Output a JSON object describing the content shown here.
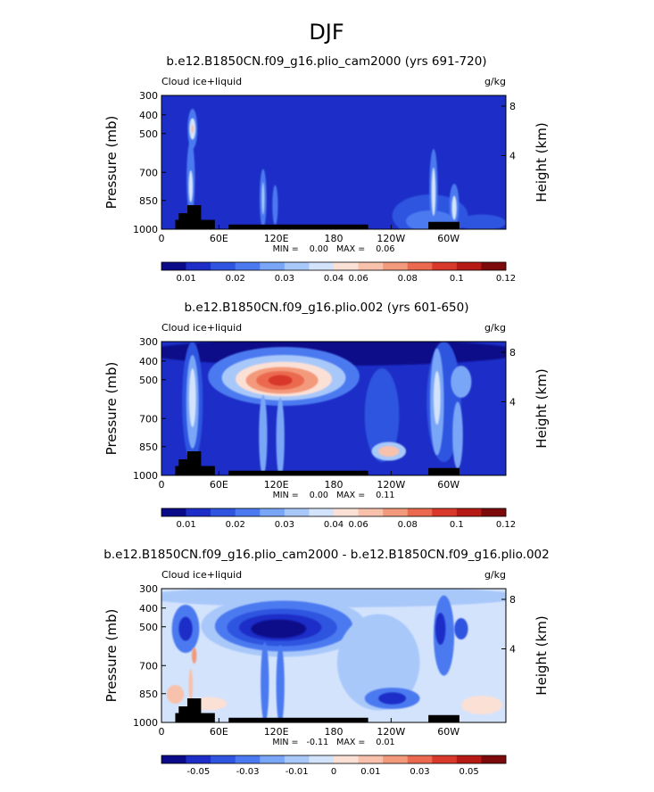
{
  "figure": {
    "title": "DJF"
  },
  "chart_data": [
    {
      "type": "heatmap",
      "title": "b.e12.B1850CN.f09_g16.plio_cam2000 (yrs 691-720)",
      "left_label": "Cloud ice+liquid",
      "right_label": "g/kg",
      "ylabel": "Pressure (mb)",
      "ylabel_right": "Height (km)",
      "x_ticks": [
        "0",
        "60E",
        "120E",
        "180",
        "120W",
        "60W"
      ],
      "y_ticks": [
        "300",
        "400",
        "500",
        "700",
        "850",
        "1000"
      ],
      "y_ticks_right": [
        "8",
        "4"
      ],
      "stats": "MIN =    0.00   MAX =    0.06",
      "colorbar_labels": [
        "0.01",
        "0.02",
        "0.03",
        "0.04",
        "0.06",
        "0.08",
        "0.1",
        "0.12"
      ],
      "colors": [
        "#0b0b8a",
        "#1c2ec7",
        "#2f55e0",
        "#4b7af0",
        "#7aa6f7",
        "#a9c8fa",
        "#d3e3fc",
        "#fbe0d6",
        "#f8c1ab",
        "#f39a7c",
        "#eb6a4f",
        "#d8392b",
        "#b51a14",
        "#7d0a0a"
      ],
      "features": [
        {
          "type": "bg",
          "level": 1
        },
        {
          "type": "blob",
          "x": 0.085,
          "y": 0.62,
          "rx": 0.012,
          "ry": 0.28,
          "level": 3
        },
        {
          "type": "blob",
          "x": 0.085,
          "y": 0.68,
          "rx": 0.006,
          "ry": 0.12,
          "level": 6
        },
        {
          "type": "blob",
          "x": 0.09,
          "y": 0.25,
          "rx": 0.014,
          "ry": 0.15,
          "level": 3
        },
        {
          "type": "blob",
          "x": 0.09,
          "y": 0.25,
          "rx": 0.009,
          "ry": 0.08,
          "level": 6
        },
        {
          "type": "blob",
          "x": 0.09,
          "y": 0.25,
          "rx": 0.004,
          "ry": 0.03,
          "level": 8
        },
        {
          "type": "blob",
          "x": 0.295,
          "y": 0.77,
          "rx": 0.01,
          "ry": 0.22,
          "level": 3
        },
        {
          "type": "blob",
          "x": 0.295,
          "y": 0.77,
          "rx": 0.004,
          "ry": 0.12,
          "level": 5
        },
        {
          "type": "blob",
          "x": 0.33,
          "y": 0.82,
          "rx": 0.008,
          "ry": 0.15,
          "level": 3
        },
        {
          "type": "blob",
          "x": 0.78,
          "y": 0.9,
          "rx": 0.11,
          "ry": 0.16,
          "level": 2
        },
        {
          "type": "blob",
          "x": 0.78,
          "y": 0.94,
          "rx": 0.07,
          "ry": 0.08,
          "level": 3
        },
        {
          "type": "blob",
          "x": 0.79,
          "y": 0.7,
          "rx": 0.012,
          "ry": 0.3,
          "level": 3
        },
        {
          "type": "blob",
          "x": 0.79,
          "y": 0.72,
          "rx": 0.006,
          "ry": 0.18,
          "level": 6
        },
        {
          "type": "blob",
          "x": 0.85,
          "y": 0.82,
          "rx": 0.014,
          "ry": 0.16,
          "level": 3
        },
        {
          "type": "blob",
          "x": 0.85,
          "y": 0.84,
          "rx": 0.007,
          "ry": 0.09,
          "level": 6
        },
        {
          "type": "blob",
          "x": 0.93,
          "y": 0.95,
          "rx": 0.07,
          "ry": 0.06,
          "level": 2
        }
      ]
    },
    {
      "type": "heatmap",
      "title": "b.e12.B1850CN.f09_g16.plio.002 (yrs 601-650)",
      "left_label": "Cloud ice+liquid",
      "right_label": "g/kg",
      "ylabel": "Pressure (mb)",
      "ylabel_right": "Height (km)",
      "x_ticks": [
        "0",
        "60E",
        "120E",
        "180",
        "120W",
        "60W"
      ],
      "y_ticks": [
        "300",
        "400",
        "500",
        "700",
        "850",
        "1000"
      ],
      "y_ticks_right": [
        "8",
        "4"
      ],
      "stats": "MIN =    0.00   MAX =    0.11",
      "colorbar_labels": [
        "0.01",
        "0.02",
        "0.03",
        "0.04",
        "0.06",
        "0.08",
        "0.1",
        "0.12"
      ],
      "colors": [
        "#0b0b8a",
        "#1c2ec7",
        "#2f55e0",
        "#4b7af0",
        "#7aa6f7",
        "#a9c8fa",
        "#d3e3fc",
        "#fbe0d6",
        "#f8c1ab",
        "#f39a7c",
        "#eb6a4f",
        "#d8392b",
        "#b51a14",
        "#7d0a0a"
      ],
      "features": [
        {
          "type": "bg",
          "level": 1
        },
        {
          "type": "blob",
          "x": 0.5,
          "y": 0.08,
          "rx": 0.55,
          "ry": 0.1,
          "level": 0
        },
        {
          "type": "blob",
          "x": 0.09,
          "y": 0.45,
          "rx": 0.03,
          "ry": 0.45,
          "level": 2
        },
        {
          "type": "blob",
          "x": 0.09,
          "y": 0.45,
          "rx": 0.018,
          "ry": 0.35,
          "level": 4
        },
        {
          "type": "blob",
          "x": 0.09,
          "y": 0.42,
          "rx": 0.01,
          "ry": 0.22,
          "level": 6
        },
        {
          "type": "blob",
          "x": 0.355,
          "y": 0.26,
          "rx": 0.22,
          "ry": 0.22,
          "level": 3
        },
        {
          "type": "blob",
          "x": 0.355,
          "y": 0.27,
          "rx": 0.18,
          "ry": 0.17,
          "level": 5
        },
        {
          "type": "blob",
          "x": 0.355,
          "y": 0.28,
          "rx": 0.14,
          "ry": 0.13,
          "level": 7
        },
        {
          "type": "blob",
          "x": 0.35,
          "y": 0.29,
          "rx": 0.105,
          "ry": 0.1,
          "level": 9
        },
        {
          "type": "blob",
          "x": 0.345,
          "y": 0.29,
          "rx": 0.07,
          "ry": 0.07,
          "level": 10
        },
        {
          "type": "blob",
          "x": 0.345,
          "y": 0.29,
          "rx": 0.035,
          "ry": 0.04,
          "level": 11
        },
        {
          "type": "blob",
          "x": 0.295,
          "y": 0.7,
          "rx": 0.012,
          "ry": 0.3,
          "level": 4
        },
        {
          "type": "blob",
          "x": 0.345,
          "y": 0.72,
          "rx": 0.012,
          "ry": 0.3,
          "level": 4
        },
        {
          "type": "blob",
          "x": 0.64,
          "y": 0.55,
          "rx": 0.05,
          "ry": 0.35,
          "level": 2
        },
        {
          "type": "blob",
          "x": 0.66,
          "y": 0.82,
          "rx": 0.05,
          "ry": 0.07,
          "level": 5
        },
        {
          "type": "blob",
          "x": 0.66,
          "y": 0.82,
          "rx": 0.03,
          "ry": 0.04,
          "level": 8
        },
        {
          "type": "blob",
          "x": 0.82,
          "y": 0.45,
          "rx": 0.05,
          "ry": 0.45,
          "level": 2
        },
        {
          "type": "blob",
          "x": 0.8,
          "y": 0.45,
          "rx": 0.02,
          "ry": 0.4,
          "level": 4
        },
        {
          "type": "blob",
          "x": 0.8,
          "y": 0.42,
          "rx": 0.01,
          "ry": 0.2,
          "level": 6
        },
        {
          "type": "blob",
          "x": 0.86,
          "y": 0.7,
          "rx": 0.015,
          "ry": 0.25,
          "level": 4
        },
        {
          "type": "blob",
          "x": 0.87,
          "y": 0.3,
          "rx": 0.03,
          "ry": 0.12,
          "level": 4
        }
      ]
    },
    {
      "type": "heatmap",
      "title": "b.e12.B1850CN.f09_g16.plio_cam2000 - b.e12.B1850CN.f09_g16.plio.002",
      "left_label": "Cloud ice+liquid",
      "right_label": "g/kg",
      "ylabel": "Pressure (mb)",
      "ylabel_right": "Height (km)",
      "x_ticks": [
        "0",
        "60E",
        "120E",
        "180",
        "120W",
        "60W"
      ],
      "y_ticks": [
        "300",
        "400",
        "500",
        "700",
        "850",
        "1000"
      ],
      "y_ticks_right": [
        "8",
        "4"
      ],
      "stats": "MIN =   -0.11   MAX =    0.01",
      "colorbar_labels": [
        "-0.05",
        "-0.03",
        "-0.01",
        "0",
        "0.01",
        "0.03",
        "0.05"
      ],
      "colors": [
        "#0b0b8a",
        "#1c2ec7",
        "#2f55e0",
        "#4b7af0",
        "#7aa6f7",
        "#a9c8fa",
        "#d3e3fc",
        "#fbe0d6",
        "#f8c1ab",
        "#f39a7c",
        "#eb6a4f",
        "#d8392b",
        "#b51a14",
        "#7d0a0a"
      ],
      "features": [
        {
          "type": "bg",
          "level": 6
        },
        {
          "type": "blob",
          "x": 0.5,
          "y": 0.06,
          "rx": 0.55,
          "ry": 0.08,
          "level": 5
        },
        {
          "type": "blob",
          "x": 0.355,
          "y": 0.28,
          "rx": 0.24,
          "ry": 0.23,
          "level": 5
        },
        {
          "type": "blob",
          "x": 0.355,
          "y": 0.28,
          "rx": 0.2,
          "ry": 0.19,
          "level": 3
        },
        {
          "type": "blob",
          "x": 0.35,
          "y": 0.29,
          "rx": 0.16,
          "ry": 0.14,
          "level": 2
        },
        {
          "type": "blob",
          "x": 0.345,
          "y": 0.29,
          "rx": 0.12,
          "ry": 0.1,
          "level": 1
        },
        {
          "type": "blob",
          "x": 0.34,
          "y": 0.3,
          "rx": 0.08,
          "ry": 0.07,
          "level": 0
        },
        {
          "type": "blob",
          "x": 0.07,
          "y": 0.3,
          "rx": 0.04,
          "ry": 0.18,
          "level": 3
        },
        {
          "type": "blob",
          "x": 0.07,
          "y": 0.3,
          "rx": 0.02,
          "ry": 0.09,
          "level": 1
        },
        {
          "type": "blob",
          "x": 0.3,
          "y": 0.7,
          "rx": 0.012,
          "ry": 0.3,
          "level": 3
        },
        {
          "type": "blob",
          "x": 0.345,
          "y": 0.72,
          "rx": 0.012,
          "ry": 0.3,
          "level": 3
        },
        {
          "type": "blob",
          "x": 0.63,
          "y": 0.55,
          "rx": 0.12,
          "ry": 0.36,
          "level": 5
        },
        {
          "type": "blob",
          "x": 0.67,
          "y": 0.82,
          "rx": 0.08,
          "ry": 0.08,
          "level": 3
        },
        {
          "type": "blob",
          "x": 0.67,
          "y": 0.82,
          "rx": 0.04,
          "ry": 0.045,
          "level": 1
        },
        {
          "type": "blob",
          "x": 0.82,
          "y": 0.35,
          "rx": 0.03,
          "ry": 0.3,
          "level": 3
        },
        {
          "type": "blob",
          "x": 0.81,
          "y": 0.3,
          "rx": 0.015,
          "ry": 0.12,
          "level": 1
        },
        {
          "type": "blob",
          "x": 0.87,
          "y": 0.3,
          "rx": 0.02,
          "ry": 0.08,
          "level": 2
        },
        {
          "type": "blob",
          "x": 0.095,
          "y": 0.5,
          "rx": 0.007,
          "ry": 0.06,
          "level": 9
        },
        {
          "type": "blob",
          "x": 0.085,
          "y": 0.72,
          "rx": 0.006,
          "ry": 0.12,
          "level": 8
        },
        {
          "type": "blob",
          "x": 0.04,
          "y": 0.79,
          "rx": 0.025,
          "ry": 0.07,
          "level": 8
        },
        {
          "type": "blob",
          "x": 0.14,
          "y": 0.86,
          "rx": 0.05,
          "ry": 0.05,
          "level": 7
        },
        {
          "type": "blob",
          "x": 0.93,
          "y": 0.87,
          "rx": 0.06,
          "ry": 0.07,
          "level": 7
        }
      ]
    }
  ]
}
